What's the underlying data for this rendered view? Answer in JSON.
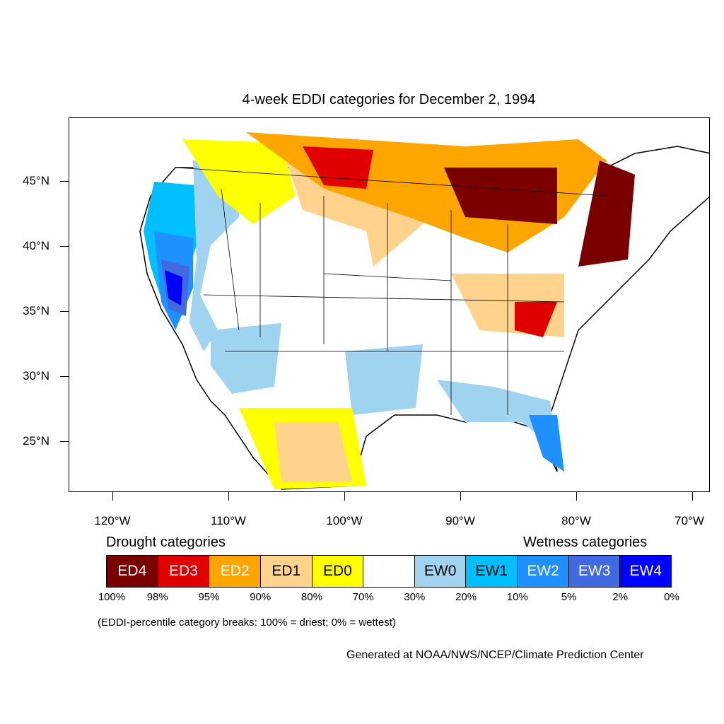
{
  "title": "4-week EDDI categories for December 2, 1994",
  "lat_labels": [
    "45°N",
    "40°N",
    "35°N",
    "30°N",
    "25°N"
  ],
  "lon_labels": [
    "120°W",
    "110°W",
    "100°W",
    "90°W",
    "80°W",
    "70°W"
  ],
  "legend": {
    "drought_heading": "Drought categories",
    "wetness_heading": "Wetness categories",
    "categories": [
      {
        "label": "ED4",
        "color": "#7a0000",
        "text_color": "#ffffff"
      },
      {
        "label": "ED3",
        "color": "#e00000",
        "text_color": "#ffffff"
      },
      {
        "label": "ED2",
        "color": "#ffa500",
        "text_color": "#ffffff"
      },
      {
        "label": "ED1",
        "color": "#ffd38c",
        "text_color": "#000000"
      },
      {
        "label": "ED0",
        "color": "#ffff00",
        "text_color": "#000000"
      },
      {
        "label": "",
        "color": "#ffffff",
        "text_color": "#000000"
      },
      {
        "label": "EW0",
        "color": "#9fd3f0",
        "text_color": "#000000"
      },
      {
        "label": "EW1",
        "color": "#00bfff",
        "text_color": "#000000"
      },
      {
        "label": "EW2",
        "color": "#1e90ff",
        "text_color": "#ffffff"
      },
      {
        "label": "EW3",
        "color": "#4169e1",
        "text_color": "#ffffff"
      },
      {
        "label": "EW4",
        "color": "#0000ff",
        "text_color": "#ffffff"
      }
    ],
    "breaks": [
      "100%",
      "98%",
      "95%",
      "90%",
      "80%",
      "70%",
      "30%",
      "20%",
      "10%",
      "5%",
      "2%",
      "0%"
    ]
  },
  "note": "(EDDI-percentile category breaks: 100% = driest; 0% = wettest)",
  "credit": "Generated at NOAA/NWS/NCEP/Climate Prediction Center"
}
